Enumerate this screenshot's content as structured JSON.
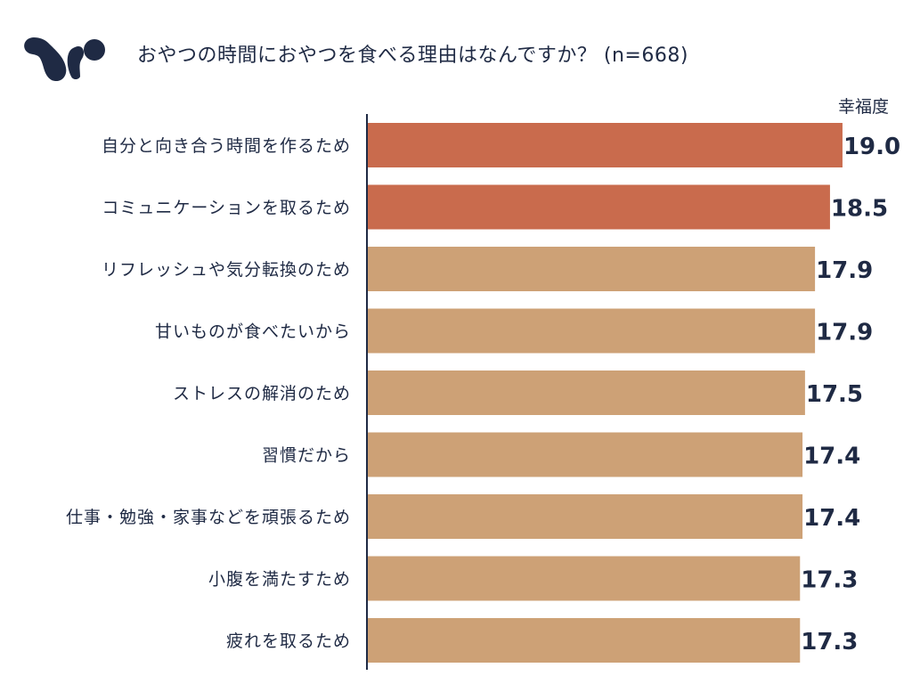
{
  "header": {
    "title": "おやつの時間におやつを食べる理由はなんですか？ (n=668)",
    "logo_icon": "squirrel-logo-icon",
    "logo_color": "#1f2a44"
  },
  "chart_data": {
    "type": "bar",
    "orientation": "horizontal",
    "title": "おやつの時間におやつを食べる理由はなんですか？ (n=668)",
    "value_axis_label": "幸福度",
    "categories": [
      "自分と向き合う時間を作るため",
      "コミュニケーションを取るため",
      "リフレッシュや気分転換のため",
      "甘いものが食べたいから",
      "ストレスの解消のため",
      "習慣だから",
      "仕事・勉強・家事などを頑張るため",
      "小腹を満たすため",
      "疲れを取るため"
    ],
    "values": [
      19.0,
      18.5,
      17.9,
      17.9,
      17.5,
      17.4,
      17.4,
      17.3,
      17.3
    ],
    "value_labels": [
      "19.0",
      "18.5",
      "17.9",
      "17.9",
      "17.5",
      "17.4",
      "17.4",
      "17.3",
      "17.3"
    ],
    "highlighted": [
      true,
      true,
      false,
      false,
      false,
      false,
      false,
      false,
      false
    ],
    "colors": {
      "highlight": "#c96b4d",
      "normal": "#cda176",
      "axis": "#1f2a44",
      "text": "#1f2a44"
    },
    "grid": false,
    "legend": "none"
  }
}
